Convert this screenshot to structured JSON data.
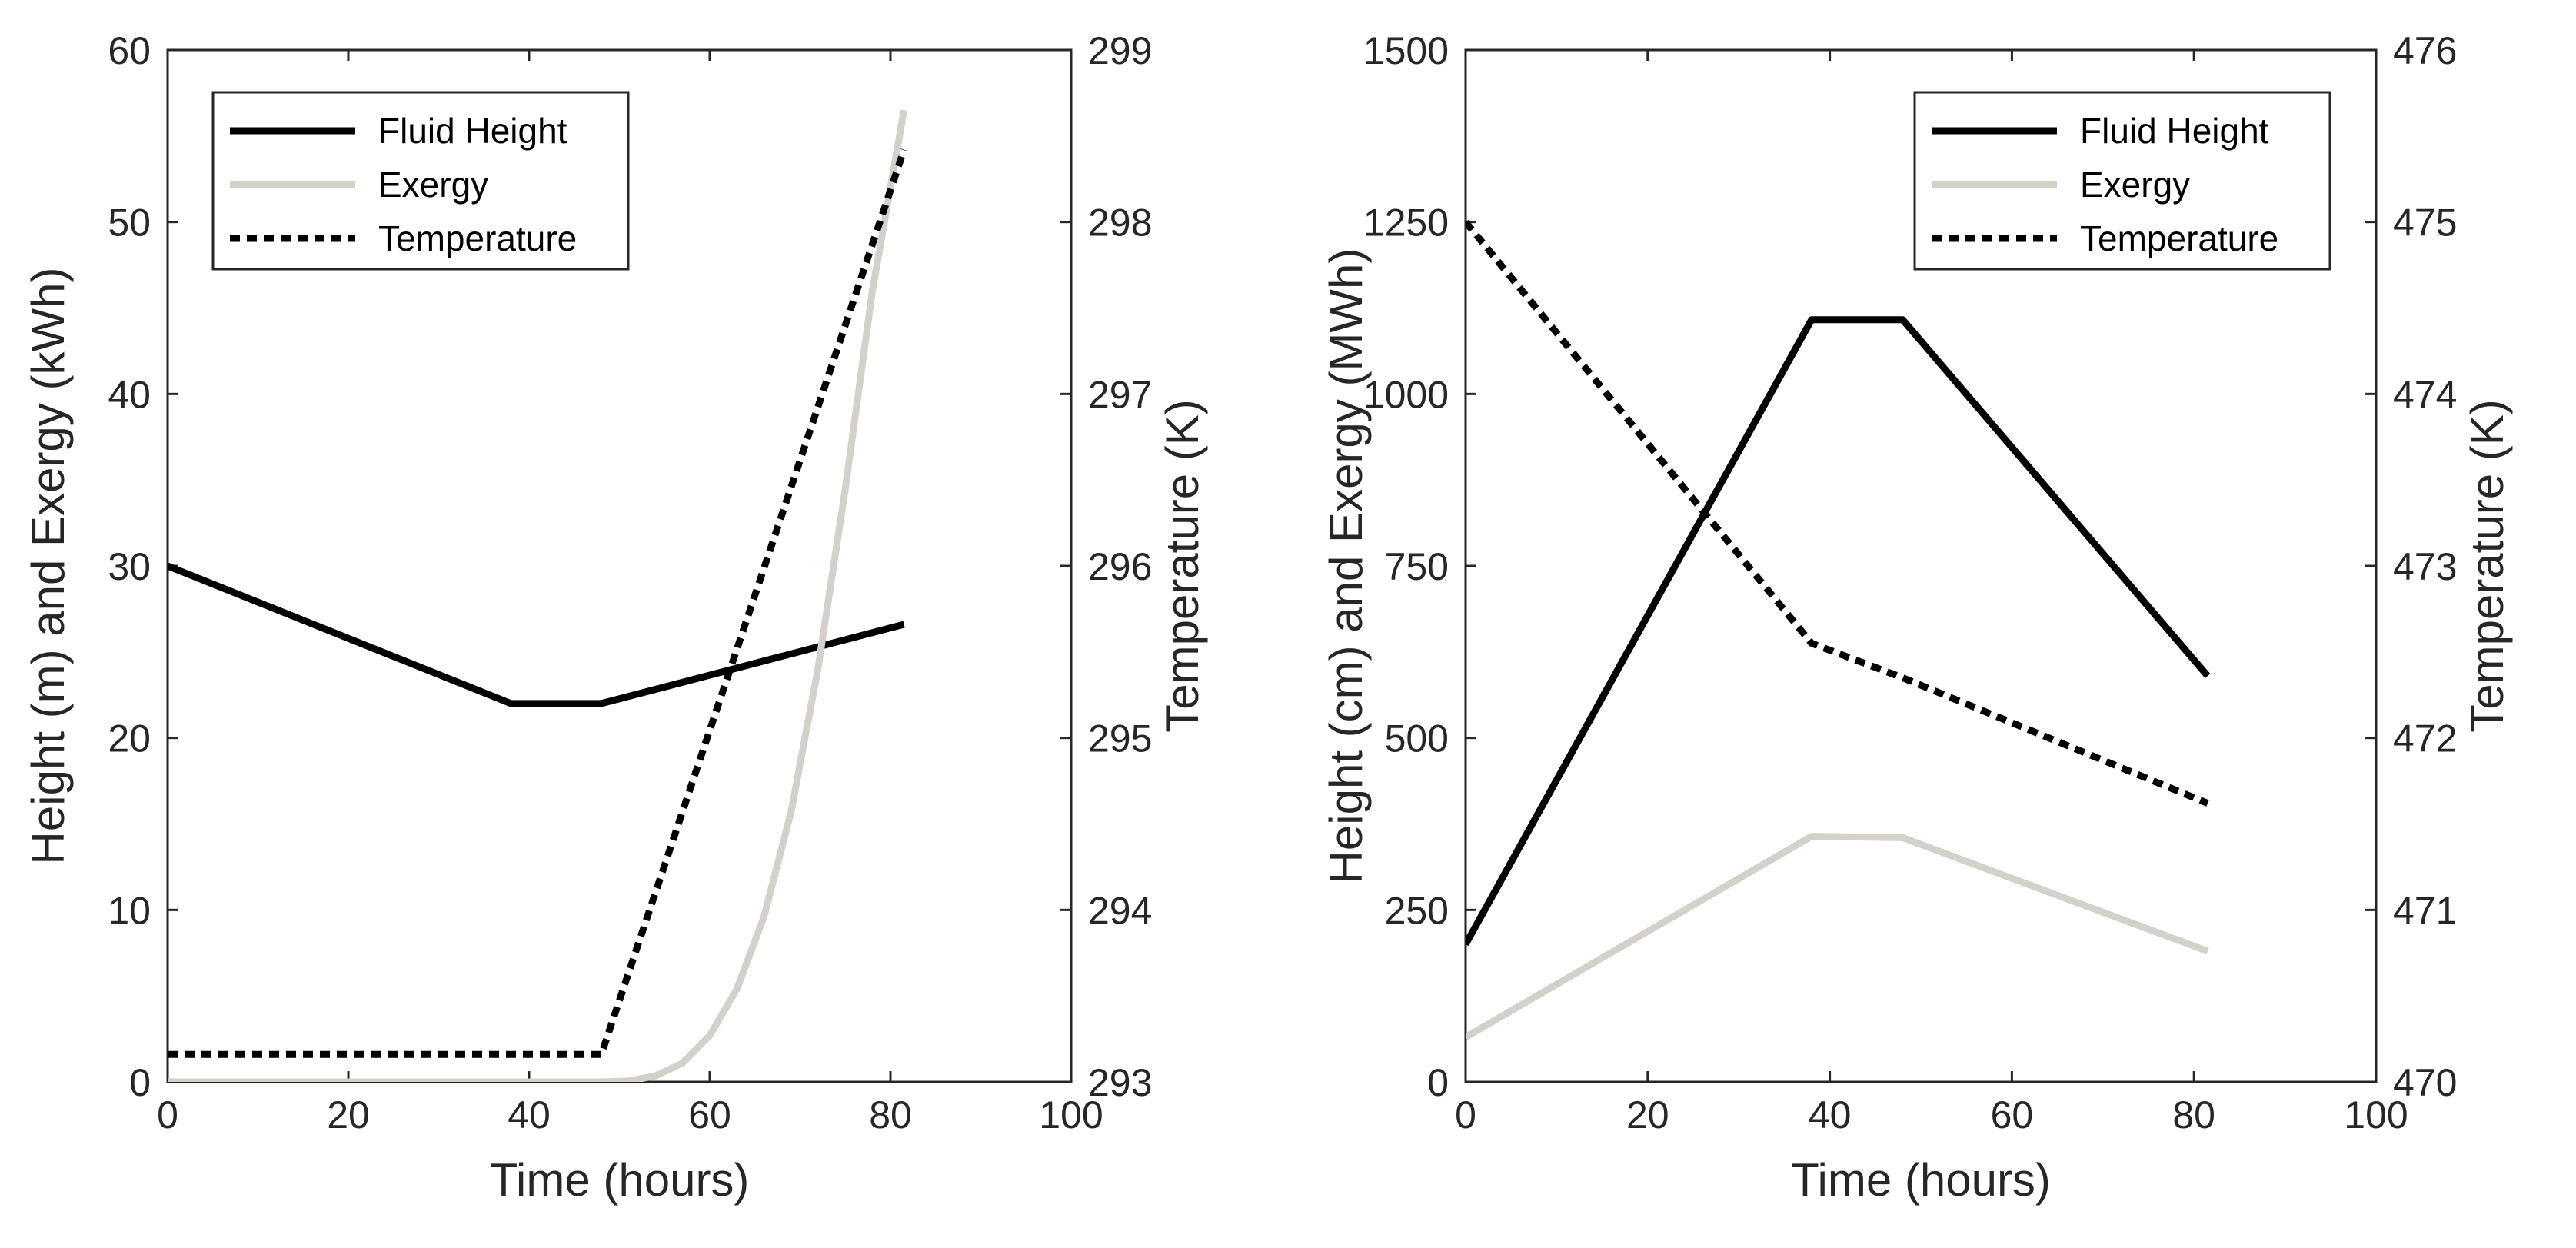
{
  "colors": {
    "fluid_height": "#000000",
    "exergy": "#d4d1cb",
    "temperature": "#000000",
    "axis": "#262626"
  },
  "chart_data": [
    {
      "type": "line",
      "title": "",
      "xlabel": "Time (hours)",
      "ylabel_left": "Height (m) and Exergy (kWh)",
      "ylabel_right": "Temperature (K)",
      "xlim": [
        0,
        100
      ],
      "ylim_left": [
        0,
        60
      ],
      "ylim_right": [
        293,
        299
      ],
      "xticks": [
        "0",
        "20",
        "40",
        "60",
        "80",
        "100"
      ],
      "yticks_left": [
        "0",
        "10",
        "20",
        "30",
        "40",
        "50",
        "60"
      ],
      "yticks_right": [
        "293",
        "294",
        "295",
        "296",
        "297",
        "298",
        "299"
      ],
      "legend_position": "top-left",
      "legend": [
        "Fluid Height",
        "Exergy",
        "Temperature"
      ],
      "series": [
        {
          "name": "Fluid Height",
          "axis": "left",
          "style": "solid",
          "x": [
            0,
            38,
            48,
            81.5
          ],
          "y": [
            30,
            22,
            22,
            26.6
          ]
        },
        {
          "name": "Exergy",
          "axis": "left",
          "style": "solid-light",
          "x": [
            0,
            48,
            51,
            54,
            57,
            60,
            63,
            66,
            69,
            72,
            75,
            78,
            81.5
          ],
          "y": [
            0,
            0,
            0.05,
            0.35,
            1.1,
            2.7,
            5.4,
            9.6,
            15.7,
            24.1,
            34.5,
            46.0,
            56.5
          ]
        },
        {
          "name": "Temperature",
          "axis": "right",
          "style": "dotted",
          "x": [
            0,
            48,
            81.5
          ],
          "y": [
            293.16,
            293.16,
            298.42
          ]
        }
      ]
    },
    {
      "type": "line",
      "title": "",
      "xlabel": "Time (hours)",
      "ylabel_left": "Height (cm) and Exergy (MWh)",
      "ylabel_right": "Temperature (K)",
      "xlim": [
        0,
        100
      ],
      "ylim_left": [
        0,
        1500
      ],
      "ylim_right": [
        470,
        476
      ],
      "xticks": [
        "0",
        "20",
        "40",
        "60",
        "80",
        "100"
      ],
      "yticks_left": [
        "0",
        "250",
        "500",
        "750",
        "1000",
        "1250",
        "1500"
      ],
      "yticks_right": [
        "470",
        "471",
        "472",
        "473",
        "474",
        "475",
        "476"
      ],
      "legend_position": "top-right",
      "legend": [
        "Fluid Height",
        "Exergy",
        "Temperature"
      ],
      "series": [
        {
          "name": "Fluid Height",
          "axis": "left",
          "style": "solid",
          "x": [
            0,
            38,
            48,
            81.5
          ],
          "y": [
            200,
            1108,
            1108,
            590
          ]
        },
        {
          "name": "Exergy",
          "axis": "left",
          "style": "solid-light",
          "x": [
            0,
            38,
            48,
            81.5
          ],
          "y": [
            65,
            357,
            355,
            190
          ]
        },
        {
          "name": "Temperature",
          "axis": "right",
          "style": "dotted",
          "x": [
            0,
            38,
            48,
            81.5
          ],
          "y": [
            475.0,
            472.55,
            472.35,
            471.62
          ]
        }
      ]
    }
  ]
}
